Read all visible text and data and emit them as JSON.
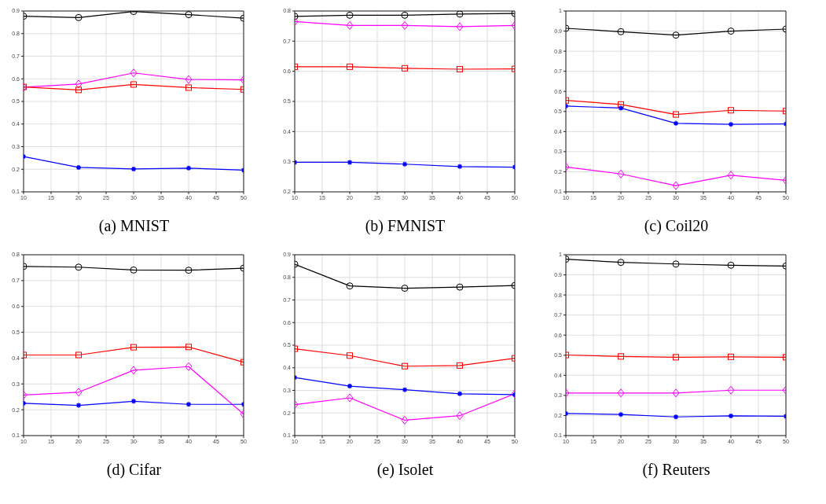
{
  "chart_data": [
    {
      "type": "line",
      "title": "(a) MNIST",
      "x": [
        10,
        20,
        30,
        40,
        50
      ],
      "xlim": [
        10,
        50
      ],
      "xticks": [
        10,
        15,
        20,
        25,
        30,
        35,
        40,
        45,
        50
      ],
      "ylim": [
        0.1,
        0.9
      ],
      "yticks": [
        0.1,
        0.2,
        0.3,
        0.4,
        0.5,
        0.6,
        0.7,
        0.8,
        0.9
      ],
      "grid": true,
      "legend": false,
      "series": [
        {
          "color": "#000000",
          "marker": "circle",
          "values": [
            0.877,
            0.871,
            0.898,
            0.884,
            0.868
          ]
        },
        {
          "color": "#ff00ff",
          "marker": "diamond",
          "values": [
            0.563,
            0.577,
            0.626,
            0.597,
            0.595
          ]
        },
        {
          "color": "#ff0000",
          "marker": "square",
          "values": [
            0.564,
            0.551,
            0.575,
            0.561,
            0.553
          ]
        },
        {
          "color": "#0000ff",
          "marker": "cross",
          "values": [
            0.256,
            0.208,
            0.201,
            0.205,
            0.196
          ]
        }
      ]
    },
    {
      "type": "line",
      "title": "(b) FMNIST",
      "x": [
        10,
        20,
        30,
        40,
        50
      ],
      "xlim": [
        10,
        50
      ],
      "xticks": [
        10,
        15,
        20,
        25,
        30,
        35,
        40,
        45,
        50
      ],
      "ylim": [
        0.2,
        0.8
      ],
      "yticks": [
        0.2,
        0.3,
        0.4,
        0.5,
        0.6,
        0.7,
        0.8
      ],
      "grid": true,
      "legend": false,
      "series": [
        {
          "color": "#000000",
          "marker": "circle",
          "values": [
            0.782,
            0.786,
            0.786,
            0.79,
            0.792
          ]
        },
        {
          "color": "#ff00ff",
          "marker": "diamond",
          "values": [
            0.765,
            0.752,
            0.752,
            0.748,
            0.752
          ]
        },
        {
          "color": "#ff0000",
          "marker": "square",
          "values": [
            0.615,
            0.615,
            0.61,
            0.607,
            0.608
          ]
        },
        {
          "color": "#0000ff",
          "marker": "cross",
          "values": [
            0.298,
            0.298,
            0.292,
            0.284,
            0.282
          ]
        }
      ]
    },
    {
      "type": "line",
      "title": "(c) Coil20",
      "x": [
        10,
        20,
        30,
        40,
        50
      ],
      "xlim": [
        10,
        50
      ],
      "xticks": [
        10,
        15,
        20,
        25,
        30,
        35,
        40,
        45,
        50
      ],
      "ylim": [
        0.1,
        1
      ],
      "yticks": [
        0.1,
        0.2,
        0.3,
        0.4,
        0.5,
        0.6,
        0.7,
        0.8,
        0.9,
        1
      ],
      "grid": true,
      "legend": false,
      "series": [
        {
          "color": "#000000",
          "marker": "circle",
          "values": [
            0.914,
            0.897,
            0.88,
            0.9,
            0.91
          ]
        },
        {
          "color": "#ff00ff",
          "marker": "diamond",
          "values": [
            0.224,
            0.189,
            0.131,
            0.183,
            0.157
          ]
        },
        {
          "color": "#ff0000",
          "marker": "square",
          "values": [
            0.555,
            0.535,
            0.485,
            0.506,
            0.502
          ]
        },
        {
          "color": "#0000ff",
          "marker": "cross",
          "values": [
            0.527,
            0.517,
            0.441,
            0.436,
            0.438
          ]
        }
      ]
    },
    {
      "type": "line",
      "title": "(d) Cifar",
      "x": [
        10,
        20,
        30,
        40,
        50
      ],
      "xlim": [
        10,
        50
      ],
      "xticks": [
        10,
        15,
        20,
        25,
        30,
        35,
        40,
        45,
        50
      ],
      "ylim": [
        0.1,
        0.8
      ],
      "yticks": [
        0.1,
        0.2,
        0.3,
        0.4,
        0.5,
        0.6,
        0.7,
        0.8
      ],
      "grid": true,
      "legend": false,
      "series": [
        {
          "color": "#000000",
          "marker": "circle",
          "values": [
            0.755,
            0.752,
            0.741,
            0.74,
            0.748
          ]
        },
        {
          "color": "#ff00ff",
          "marker": "diamond",
          "values": [
            0.257,
            0.268,
            0.353,
            0.367,
            0.183
          ]
        },
        {
          "color": "#ff0000",
          "marker": "square",
          "values": [
            0.412,
            0.412,
            0.442,
            0.443,
            0.384
          ]
        },
        {
          "color": "#0000ff",
          "marker": "cross",
          "values": [
            0.225,
            0.217,
            0.233,
            0.221,
            0.221
          ]
        }
      ]
    },
    {
      "type": "line",
      "title": "(e) Isolet",
      "x": [
        10,
        20,
        30,
        40,
        50
      ],
      "xlim": [
        10,
        50
      ],
      "xticks": [
        10,
        15,
        20,
        25,
        30,
        35,
        40,
        45,
        50
      ],
      "ylim": [
        0.1,
        0.9
      ],
      "yticks": [
        0.1,
        0.2,
        0.3,
        0.4,
        0.5,
        0.6,
        0.7,
        0.8,
        0.9
      ],
      "grid": true,
      "legend": false,
      "series": [
        {
          "color": "#000000",
          "marker": "circle",
          "values": [
            0.858,
            0.762,
            0.752,
            0.757,
            0.764
          ]
        },
        {
          "color": "#ff00ff",
          "marker": "diamond",
          "values": [
            0.237,
            0.267,
            0.168,
            0.188,
            0.285
          ]
        },
        {
          "color": "#ff0000",
          "marker": "square",
          "values": [
            0.484,
            0.454,
            0.407,
            0.41,
            0.442
          ]
        },
        {
          "color": "#0000ff",
          "marker": "cross",
          "values": [
            0.357,
            0.319,
            0.303,
            0.285,
            0.281
          ]
        }
      ]
    },
    {
      "type": "line",
      "title": "(f) Reuters",
      "x": [
        10,
        20,
        30,
        40,
        50
      ],
      "xlim": [
        10,
        50
      ],
      "xticks": [
        10,
        15,
        20,
        25,
        30,
        35,
        40,
        45,
        50
      ],
      "ylim": [
        0.1,
        1
      ],
      "yticks": [
        0.1,
        0.2,
        0.3,
        0.4,
        0.5,
        0.6,
        0.7,
        0.8,
        0.9,
        1
      ],
      "grid": true,
      "legend": false,
      "series": [
        {
          "color": "#000000",
          "marker": "circle",
          "values": [
            0.978,
            0.962,
            0.954,
            0.948,
            0.944
          ]
        },
        {
          "color": "#ff00ff",
          "marker": "diamond",
          "values": [
            0.312,
            0.312,
            0.312,
            0.326,
            0.326
          ]
        },
        {
          "color": "#ff0000",
          "marker": "square",
          "values": [
            0.501,
            0.494,
            0.49,
            0.492,
            0.49
          ]
        },
        {
          "color": "#0000ff",
          "marker": "cross",
          "values": [
            0.21,
            0.205,
            0.193,
            0.198,
            0.196
          ]
        }
      ]
    }
  ]
}
